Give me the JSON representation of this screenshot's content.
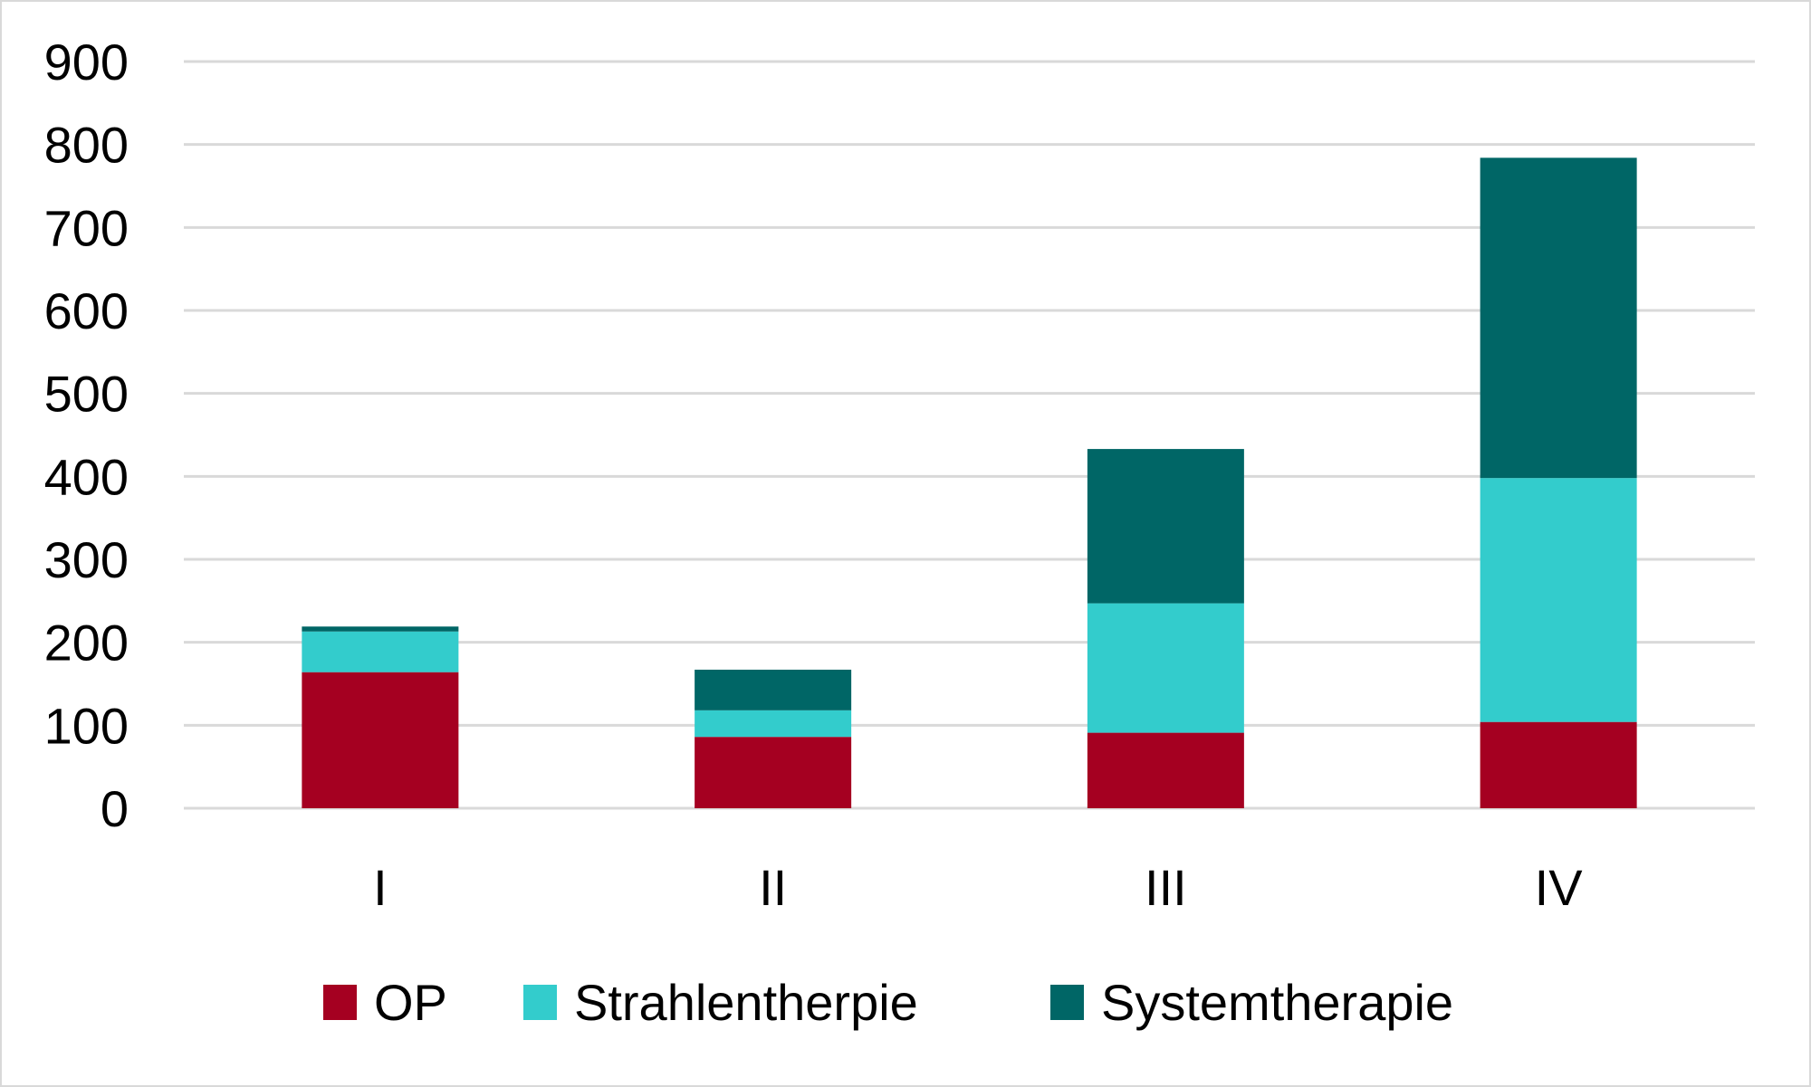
{
  "chart_data": {
    "type": "bar",
    "stacked": true,
    "categories": [
      "I",
      "II",
      "III",
      "IV"
    ],
    "series": [
      {
        "name": "OP",
        "color": "#a50021",
        "values": [
          164,
          86,
          91,
          104
        ]
      },
      {
        "name": "Strahlentherpie",
        "color": "#33cccc",
        "values": [
          49,
          32,
          156,
          294
        ]
      },
      {
        "name": "Systemtherapie",
        "color": "#006666",
        "values": [
          6,
          49,
          186,
          386
        ]
      }
    ],
    "yticks": [
      "0",
      "100",
      "200",
      "300",
      "400",
      "500",
      "600",
      "700",
      "800",
      "900"
    ],
    "ylim": [
      0,
      900
    ],
    "grid": true,
    "legend_position": "bottom"
  }
}
